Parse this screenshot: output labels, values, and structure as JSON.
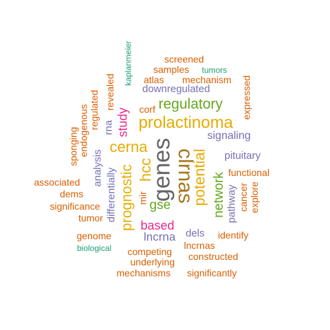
{
  "wordcloud": {
    "colors": {
      "green": "#1b9e77",
      "orange": "#d95f02",
      "purple": "#7570b3",
      "magenta": "#e7298a",
      "lime": "#66a61e",
      "gold": "#e6ab02",
      "brown": "#a6761d",
      "grey": "#666666"
    },
    "words": [
      {
        "text": "genes",
        "color": "grey",
        "size": 34,
        "rotate": -90
      },
      {
        "text": "clrnas",
        "color": "brown",
        "size": 30,
        "rotate": 90
      },
      {
        "text": "prolactinoma",
        "color": "gold",
        "size": 24,
        "rotate": 0
      },
      {
        "text": "cerna",
        "color": "gold",
        "size": 22,
        "rotate": 0
      },
      {
        "text": "potential",
        "color": "gold",
        "size": 22,
        "rotate": -90
      },
      {
        "text": "prognostic",
        "color": "gold",
        "size": 21,
        "rotate": -90
      },
      {
        "text": "hcc",
        "color": "gold",
        "size": 22,
        "rotate": -90
      },
      {
        "text": "regulatory",
        "color": "lime",
        "size": 21,
        "rotate": 0
      },
      {
        "text": "network",
        "color": "lime",
        "size": 19,
        "rotate": -90
      },
      {
        "text": "gse",
        "color": "lime",
        "size": 19,
        "rotate": 0
      },
      {
        "text": "based",
        "color": "magenta",
        "size": 18,
        "rotate": 0
      },
      {
        "text": "study",
        "color": "magenta",
        "size": 18,
        "rotate": -90
      },
      {
        "text": "lncrna",
        "color": "purple",
        "size": 17,
        "rotate": 0
      },
      {
        "text": "signaling",
        "color": "purple",
        "size": 16,
        "rotate": 0
      },
      {
        "text": "downregulated",
        "color": "purple",
        "size": 15,
        "rotate": 0
      },
      {
        "text": "pituitary",
        "color": "purple",
        "size": 15,
        "rotate": 0
      },
      {
        "text": "pathway",
        "color": "purple",
        "size": 15,
        "rotate": -90
      },
      {
        "text": "analysis",
        "color": "purple",
        "size": 15,
        "rotate": -90
      },
      {
        "text": "differentially",
        "color": "purple",
        "size": 15,
        "rotate": -90
      },
      {
        "text": "rna",
        "color": "purple",
        "size": 15,
        "rotate": -90
      },
      {
        "text": "dels",
        "color": "purple",
        "size": 15,
        "rotate": 0
      },
      {
        "text": "corf",
        "color": "orange",
        "size": 14,
        "rotate": 0
      },
      {
        "text": "screened",
        "color": "orange",
        "size": 14,
        "rotate": 0
      },
      {
        "text": "samples",
        "color": "orange",
        "size": 14,
        "rotate": 0
      },
      {
        "text": "atlas",
        "color": "orange",
        "size": 14,
        "rotate": 0
      },
      {
        "text": "mechanism",
        "color": "orange",
        "size": 14,
        "rotate": 0
      },
      {
        "text": "functional",
        "color": "orange",
        "size": 14,
        "rotate": 0
      },
      {
        "text": "identify",
        "color": "orange",
        "size": 14,
        "rotate": 0
      },
      {
        "text": "lncrnas",
        "color": "orange",
        "size": 14,
        "rotate": 0
      },
      {
        "text": "constructed",
        "color": "orange",
        "size": 14,
        "rotate": 0
      },
      {
        "text": "competing",
        "color": "orange",
        "size": 14,
        "rotate": 0
      },
      {
        "text": "underlying",
        "color": "orange",
        "size": 14,
        "rotate": 0
      },
      {
        "text": "mechanisms",
        "color": "orange",
        "size": 14,
        "rotate": 0
      },
      {
        "text": "significantly",
        "color": "orange",
        "size": 14,
        "rotate": 0
      },
      {
        "text": "genome",
        "color": "orange",
        "size": 14,
        "rotate": 0
      },
      {
        "text": "tumor",
        "color": "orange",
        "size": 14,
        "rotate": 0
      },
      {
        "text": "significance",
        "color": "orange",
        "size": 14,
        "rotate": 0
      },
      {
        "text": "dems",
        "color": "orange",
        "size": 14,
        "rotate": 0
      },
      {
        "text": "associated",
        "color": "orange",
        "size": 14,
        "rotate": 0
      },
      {
        "text": "mir",
        "color": "orange",
        "size": 14,
        "rotate": -90
      },
      {
        "text": "cancer",
        "color": "orange",
        "size": 14,
        "rotate": -90
      },
      {
        "text": "explore",
        "color": "orange",
        "size": 14,
        "rotate": -90
      },
      {
        "text": "expressed",
        "color": "orange",
        "size": 14,
        "rotate": -90
      },
      {
        "text": "revealed",
        "color": "orange",
        "size": 14,
        "rotate": -90
      },
      {
        "text": "regulated",
        "color": "orange",
        "size": 14,
        "rotate": -90
      },
      {
        "text": "endogenous",
        "color": "orange",
        "size": 14,
        "rotate": -90
      },
      {
        "text": "sponging",
        "color": "orange",
        "size": 14,
        "rotate": -90
      },
      {
        "text": "kaplanmeier",
        "color": "green",
        "size": 12,
        "rotate": -90
      },
      {
        "text": "tumors",
        "color": "green",
        "size": 12,
        "rotate": 0
      },
      {
        "text": "biological",
        "color": "green",
        "size": 12,
        "rotate": 0
      }
    ]
  }
}
